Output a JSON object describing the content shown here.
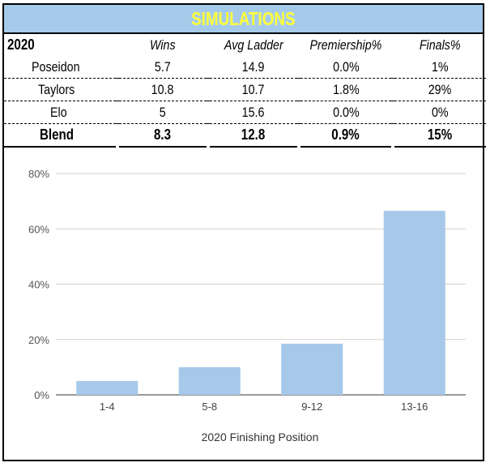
{
  "title": "SIMULATIONS",
  "table": {
    "year": "2020",
    "columns": [
      "Wins",
      "Avg Ladder",
      "Premiership%",
      "Finals%"
    ],
    "rows": [
      {
        "name": "Poseidon",
        "wins": "5.7",
        "avg_ladder": "14.9",
        "premiership": "0.0%",
        "finals": "1%"
      },
      {
        "name": "Taylors",
        "wins": "10.8",
        "avg_ladder": "10.7",
        "premiership": "1.8%",
        "finals": "29%"
      },
      {
        "name": "Elo",
        "wins": "5",
        "avg_ladder": "15.6",
        "premiership": "0.0%",
        "finals": "0%"
      },
      {
        "name": "Blend",
        "wins": "8.3",
        "avg_ladder": "12.8",
        "premiership": "0.9%",
        "finals": "15%"
      }
    ]
  },
  "chart_data": {
    "type": "bar",
    "categories": [
      "1-4",
      "5-8",
      "9-12",
      "13-16"
    ],
    "values": [
      5,
      10,
      18.5,
      66.5
    ],
    "xlabel": "2020 Finishing Position",
    "ylabel": "",
    "ylim": [
      0,
      80
    ],
    "yticks": [
      "0%",
      "20%",
      "40%",
      "60%",
      "80%"
    ],
    "ytick_values": [
      0,
      20,
      40,
      60,
      80
    ],
    "grid": true,
    "bar_color": "#a6c8e9"
  }
}
